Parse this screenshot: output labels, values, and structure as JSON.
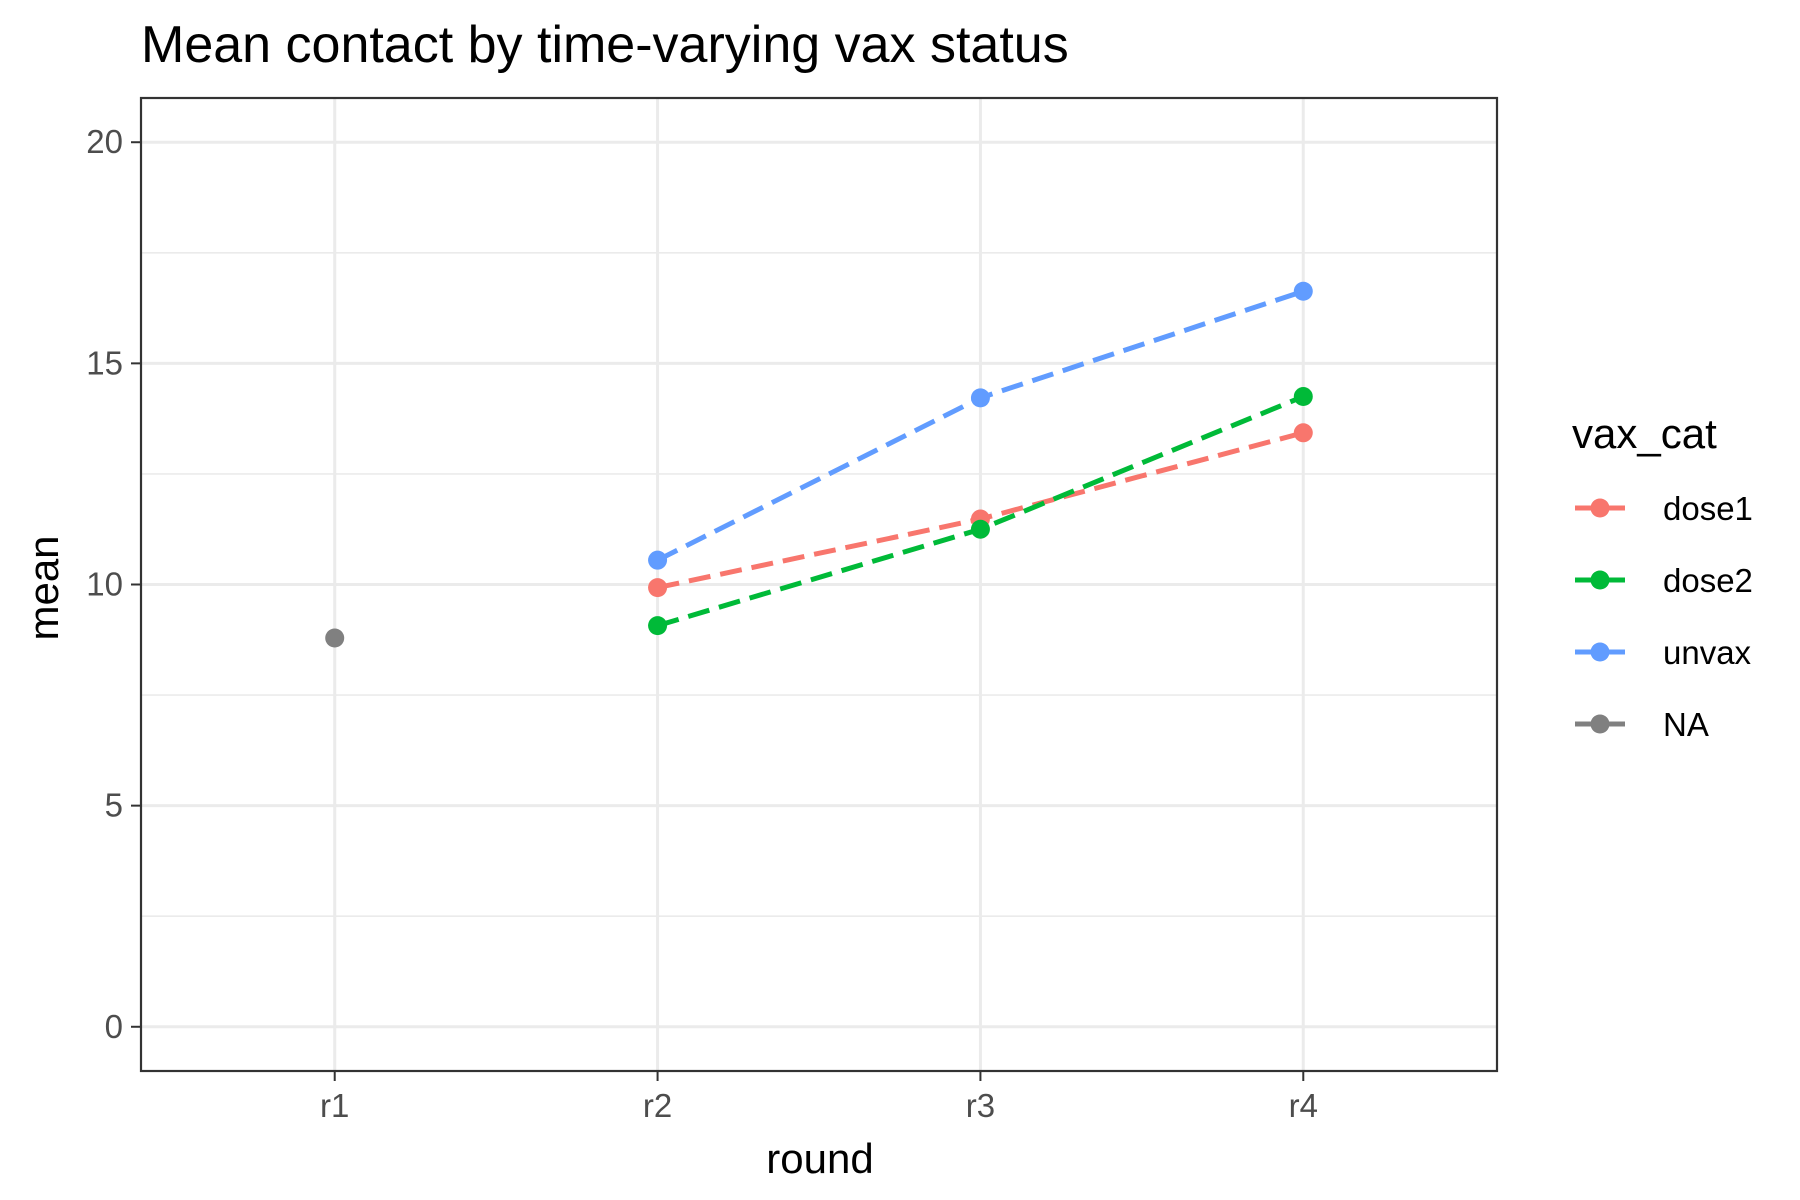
{
  "chart_data": {
    "type": "line",
    "title": "Mean contact by time-varying vax status",
    "xlabel": "round",
    "ylabel": "mean",
    "categories": [
      "r1",
      "r2",
      "r3",
      "r4"
    ],
    "ylim": [
      -1,
      21
    ],
    "yticks": [
      0,
      5,
      10,
      15,
      20
    ],
    "grid": true,
    "line_style": "dashed",
    "legend": {
      "title": "vax_cat",
      "position": "right"
    },
    "series": [
      {
        "name": "dose1",
        "color": "#F8766D",
        "values": [
          null,
          9.93,
          11.48,
          13.43
        ]
      },
      {
        "name": "dose2",
        "color": "#00BA38",
        "values": [
          null,
          9.07,
          11.25,
          14.25
        ]
      },
      {
        "name": "unvax",
        "color": "#619CFF",
        "values": [
          null,
          10.55,
          14.22,
          16.63
        ]
      },
      {
        "name": "NA",
        "color": "#808080",
        "values": [
          8.79,
          null,
          null,
          null
        ]
      }
    ]
  }
}
